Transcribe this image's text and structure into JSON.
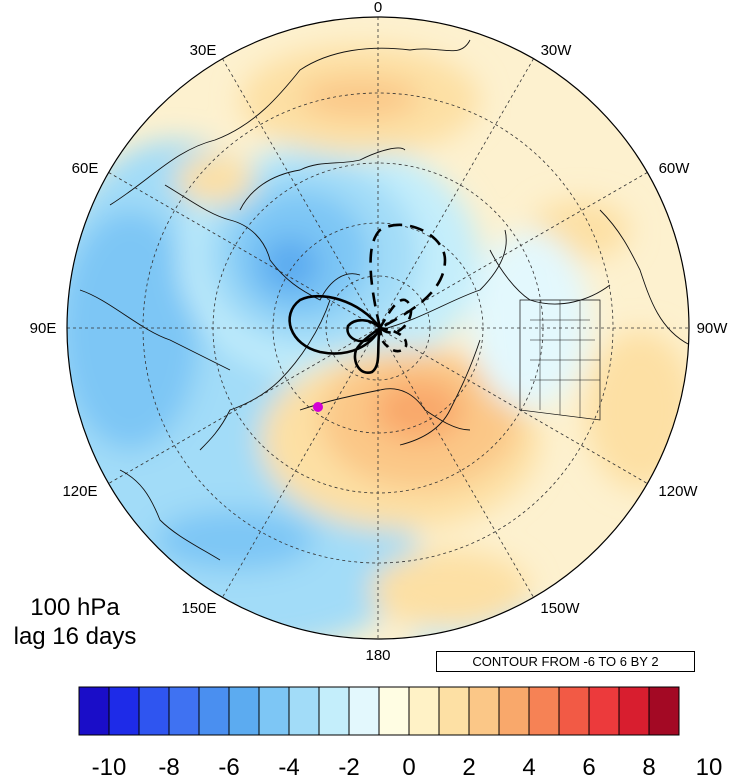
{
  "map": {
    "projection": "north polar stereographic",
    "longitude_labels": {
      "top": "0",
      "upper_left": "30E",
      "upper_right": "30W",
      "left_upper": "60E",
      "right_upper": "60W",
      "left": "90E",
      "right": "90W",
      "left_lower": "120E",
      "right_lower": "120W",
      "lower_left": "150E",
      "lower_right": "150W",
      "bottom": "180"
    },
    "marker_color": "#d400d4"
  },
  "title": {
    "level": "100 hPa",
    "lag": "lag 16 days"
  },
  "contour_note": "CONTOUR FROM -6 TO 6 BY 2",
  "colorbar": {
    "tick_labels": [
      "-10",
      "-8",
      "-6",
      "-4",
      "-2",
      "0",
      "2",
      "4",
      "6",
      "8",
      "10"
    ],
    "colors": [
      "#1a0dc8",
      "#1e2be8",
      "#2f55f0",
      "#3f72f2",
      "#4a8ff0",
      "#5cabf0",
      "#7dc6f5",
      "#a2dcf8",
      "#c4eefb",
      "#e3f8fd",
      "#fffde3",
      "#fff2c6",
      "#fde0a4",
      "#fbc787",
      "#f9a86b",
      "#f68255",
      "#f25a45",
      "#ec3a3c",
      "#d81e2f",
      "#a30924"
    ]
  }
}
